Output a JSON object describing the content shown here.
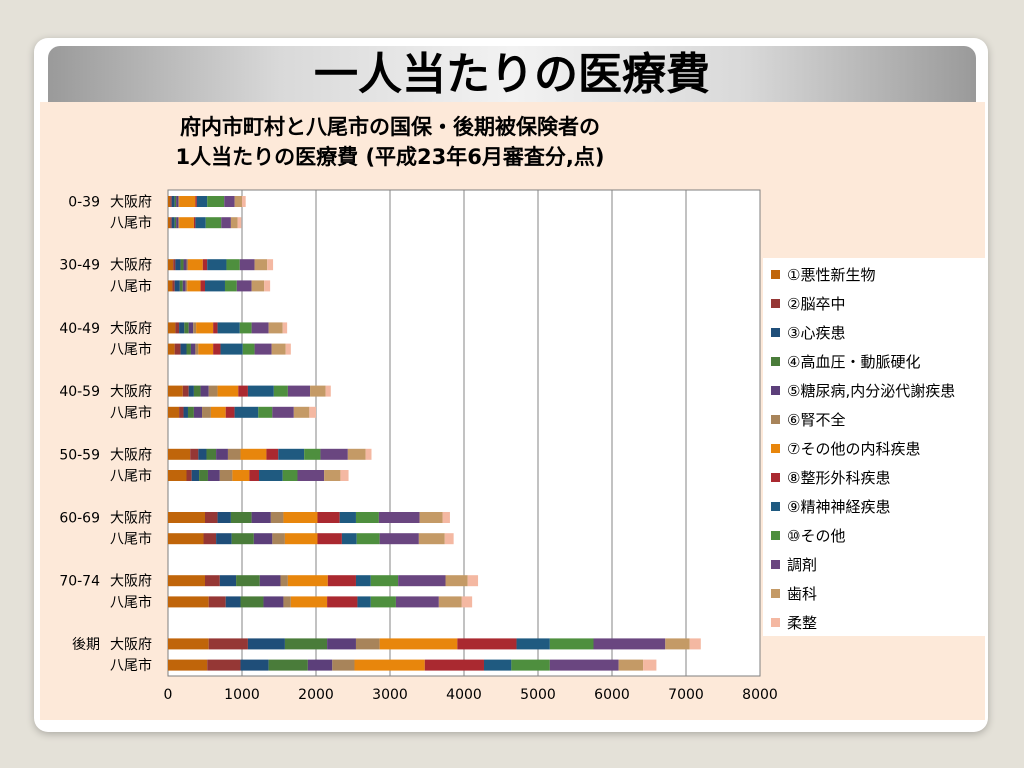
{
  "slide": {
    "title": "一人当たりの医療費"
  },
  "chart_data": {
    "type": "bar",
    "orientation": "horizontal",
    "stacked": true,
    "title_lines": [
      "府内市町村と八尾市の国保・後期被保険者の",
      "1人当たりの医療費 (平成23年6月審査分,点)"
    ],
    "xlim": [
      0,
      8000
    ],
    "x_ticks": [
      0,
      1000,
      2000,
      3000,
      4000,
      5000,
      6000,
      7000,
      8000
    ],
    "grid": "vertical",
    "legend_position": "right",
    "groups": [
      "0-39",
      "30-49",
      "40-49",
      "40-59",
      "50-59",
      "60-69",
      "70-74",
      "後期"
    ],
    "subcategories": [
      "大阪府",
      "八尾市"
    ],
    "categories": [
      "0-39 大阪府",
      "0-39 八尾市",
      "30-49 大阪府",
      "30-49 八尾市",
      "40-49 大阪府",
      "40-49 八尾市",
      "40-59 大阪府",
      "40-59 八尾市",
      "50-59 大阪府",
      "50-59 八尾市",
      "60-69 大阪府",
      "60-69 八尾市",
      "70-74 大阪府",
      "70-74 八尾市",
      "後期 大阪府",
      "後期 八尾市"
    ],
    "series": [
      {
        "name": "①悪性新生物",
        "color": "#c0650a",
        "values": [
          30,
          30,
          70,
          60,
          100,
          90,
          200,
          150,
          300,
          250,
          500,
          480,
          500,
          550,
          550,
          530
        ]
      },
      {
        "name": "②脳卒中",
        "color": "#953735",
        "values": [
          20,
          20,
          30,
          30,
          50,
          80,
          80,
          60,
          110,
          70,
          170,
          170,
          200,
          230,
          530,
          450
        ]
      },
      {
        "name": "③心疾患",
        "color": "#1f4e79",
        "values": [
          40,
          40,
          70,
          70,
          70,
          80,
          70,
          60,
          110,
          100,
          180,
          210,
          220,
          200,
          500,
          380
        ]
      },
      {
        "name": "④高血圧・動脈硬化",
        "color": "#4a7c3a",
        "values": [
          20,
          20,
          40,
          40,
          60,
          60,
          90,
          80,
          130,
          120,
          280,
          300,
          320,
          310,
          570,
          530
        ]
      },
      {
        "name": "⑤糖尿病,内分泌代謝疾患",
        "color": "#5c3f7a",
        "values": [
          30,
          30,
          40,
          40,
          60,
          60,
          110,
          110,
          160,
          160,
          260,
          250,
          280,
          270,
          390,
          330
        ]
      },
      {
        "name": "⑥腎不全",
        "color": "#a8845a",
        "values": [
          10,
          10,
          20,
          20,
          40,
          40,
          120,
          120,
          170,
          170,
          170,
          170,
          100,
          100,
          320,
          300
        ]
      },
      {
        "name": "⑦その他の内科疾患",
        "color": "#e8860c",
        "values": [
          220,
          200,
          200,
          180,
          230,
          200,
          280,
          200,
          350,
          230,
          460,
          440,
          540,
          490,
          1050,
          950
        ]
      },
      {
        "name": "⑧整形外科疾患",
        "color": "#aa2930",
        "values": [
          20,
          20,
          60,
          60,
          60,
          100,
          130,
          120,
          160,
          130,
          300,
          330,
          380,
          410,
          800,
          800
        ]
      },
      {
        "name": "⑨精神神経疾患",
        "color": "#1f5a80",
        "values": [
          140,
          140,
          260,
          270,
          300,
          300,
          350,
          320,
          350,
          320,
          220,
          200,
          200,
          180,
          450,
          370
        ]
      },
      {
        "name": "⑩その他",
        "color": "#4e8f3e",
        "values": [
          230,
          210,
          180,
          160,
          160,
          160,
          190,
          190,
          220,
          200,
          310,
          310,
          370,
          340,
          590,
          520
        ]
      },
      {
        "name": "調剤",
        "color": "#6a4680",
        "values": [
          140,
          130,
          200,
          200,
          230,
          230,
          300,
          290,
          370,
          360,
          550,
          530,
          640,
          580,
          970,
          930
        ]
      },
      {
        "name": "歯科",
        "color": "#c49a66",
        "values": [
          100,
          90,
          170,
          170,
          190,
          190,
          210,
          210,
          240,
          220,
          310,
          350,
          300,
          310,
          330,
          330
        ]
      },
      {
        "name": "柔整",
        "color": "#f4b8a2",
        "values": [
          50,
          50,
          80,
          80,
          60,
          70,
          70,
          90,
          80,
          110,
          100,
          120,
          140,
          140,
          150,
          180
        ]
      }
    ]
  }
}
